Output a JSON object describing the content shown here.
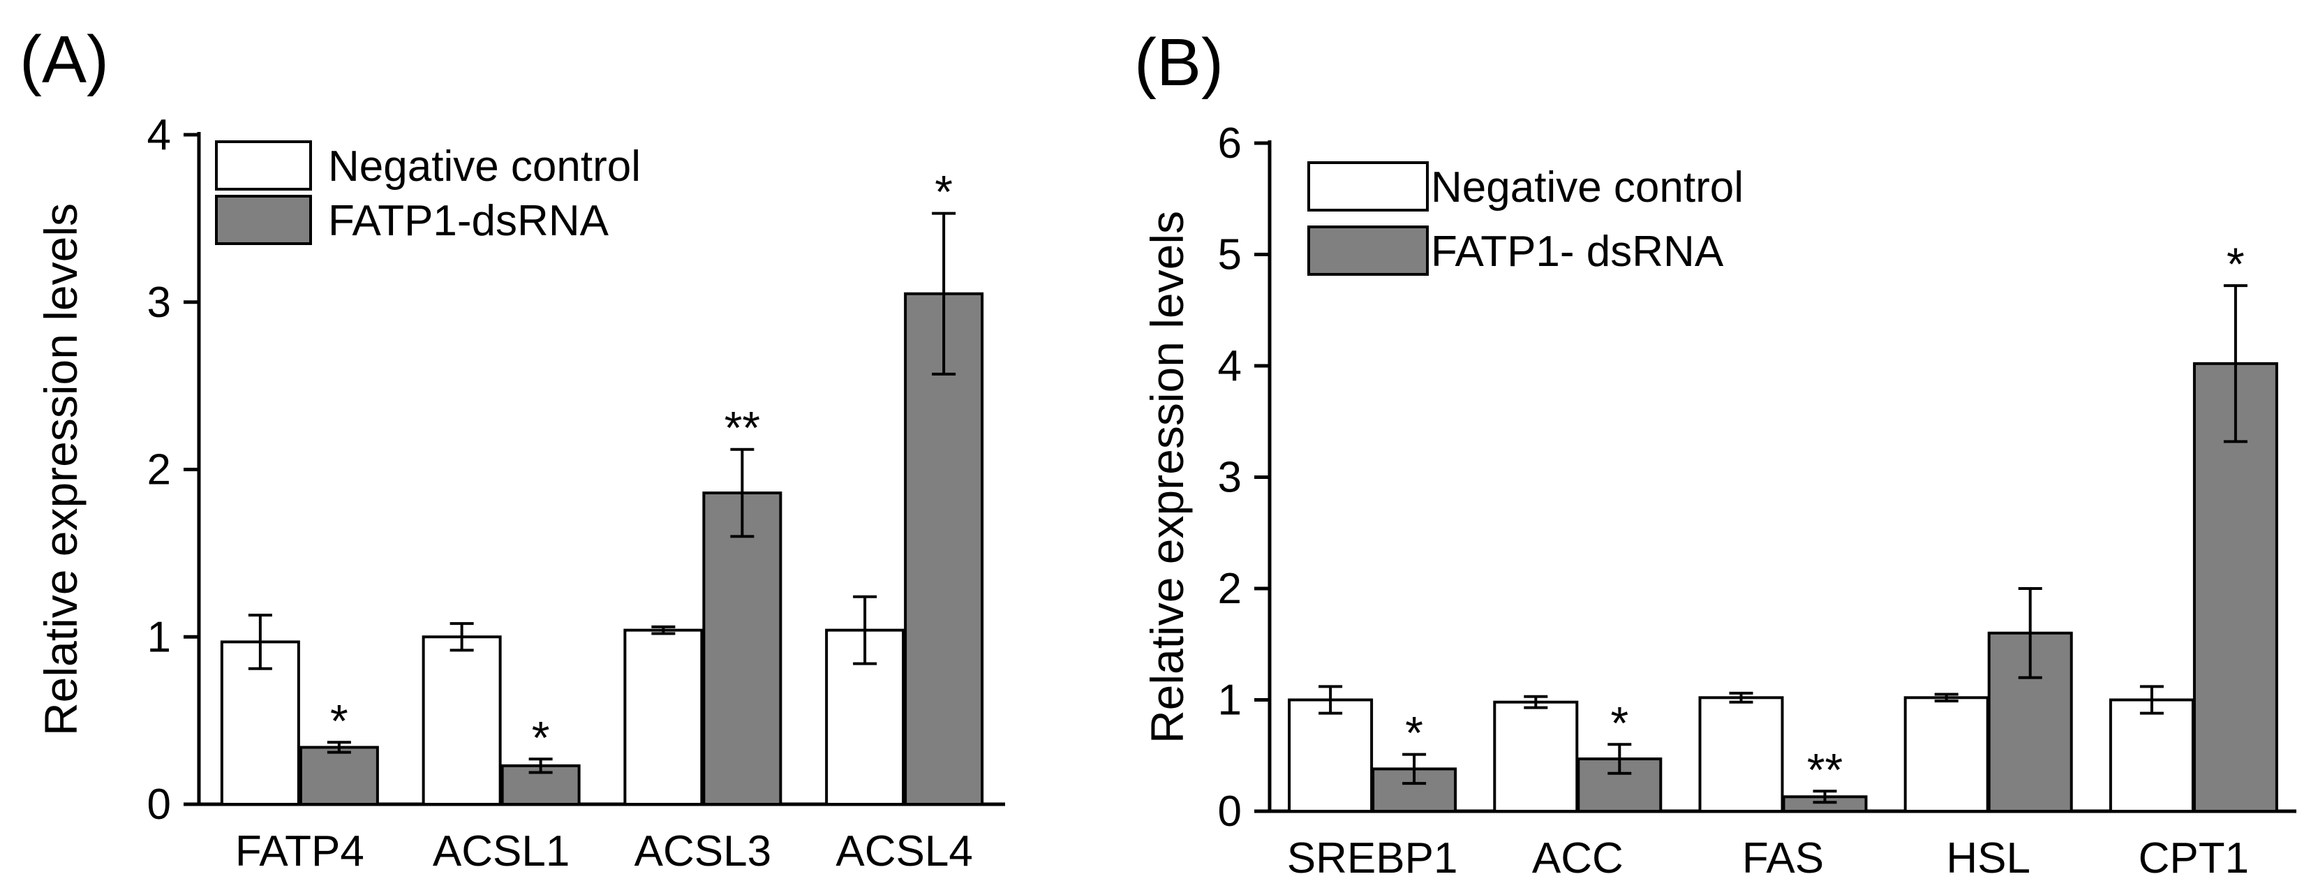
{
  "chart_data": [
    {
      "type": "bar",
      "panel_label": "(A)",
      "title": "",
      "xlabel": "",
      "ylabel": "Relative expression levels",
      "ylim": [
        0,
        4
      ],
      "yticks": [
        0,
        1,
        2,
        3,
        4
      ],
      "legend_position": "top-left",
      "categories": [
        "FATP4",
        "ACSL1",
        "ACSL3",
        "ACSL4"
      ],
      "series": [
        {
          "name": "Negative control",
          "color": "#ffffff",
          "values": [
            0.97,
            1.0,
            1.04,
            1.04
          ],
          "errors": [
            0.16,
            0.08,
            0.02,
            0.2
          ],
          "significance": [
            "",
            "",
            "",
            ""
          ]
        },
        {
          "name": "FATP1-dsRNA",
          "color": "#808080",
          "values": [
            0.34,
            0.23,
            1.86,
            3.05
          ],
          "errors": [
            0.03,
            0.04,
            0.26,
            0.48
          ],
          "significance": [
            "*",
            "*",
            "**",
            "*"
          ]
        }
      ]
    },
    {
      "type": "bar",
      "panel_label": "(B)",
      "title": "",
      "xlabel": "",
      "ylabel": "Relative expression levels",
      "ylim": [
        0,
        6
      ],
      "yticks": [
        0,
        1,
        2,
        3,
        4,
        5,
        6
      ],
      "legend_position": "top-left",
      "categories": [
        "SREBP1",
        "ACC",
        "FAS",
        "HSL",
        "CPT1"
      ],
      "series": [
        {
          "name": "Negative control",
          "color": "#ffffff",
          "values": [
            1.0,
            0.98,
            1.02,
            1.02,
            1.0
          ],
          "errors": [
            0.12,
            0.05,
            0.04,
            0.03,
            0.12
          ],
          "significance": [
            "",
            "",
            "",
            "",
            ""
          ]
        },
        {
          "name": "FATP1- dsRNA",
          "color": "#808080",
          "values": [
            0.38,
            0.47,
            0.13,
            1.6,
            4.02
          ],
          "errors": [
            0.13,
            0.13,
            0.05,
            0.4,
            0.7
          ],
          "significance": [
            "*",
            "*",
            "**",
            "",
            "*"
          ]
        }
      ]
    }
  ]
}
